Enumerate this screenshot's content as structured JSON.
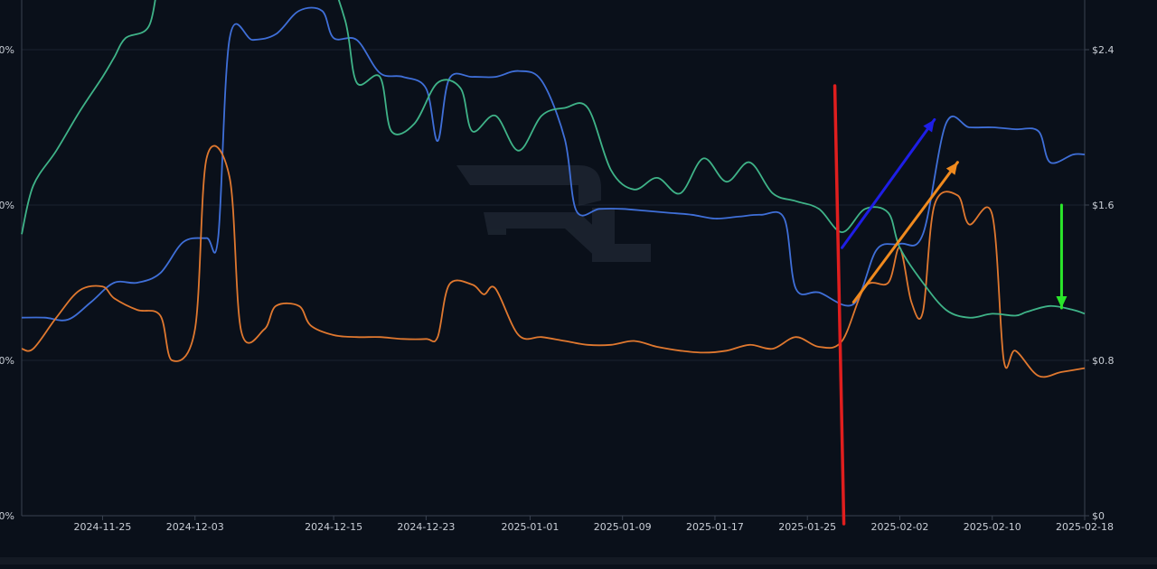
{
  "chart_data": {
    "type": "line",
    "title": "",
    "xlabel": "",
    "ylabel": "",
    "x_ticks": [
      "2024-11-25",
      "2024-12-03",
      "2024-12-15",
      "2024-12-23",
      "2025-01-01",
      "2025-01-09",
      "2025-01-17",
      "2025-01-25",
      "2025-02-02",
      "2025-02-10",
      "2025-02-18"
    ],
    "x_range": [
      "2024-11-18",
      "2025-02-18"
    ],
    "left_axis": {
      "ticks": [
        "0%",
        "0%",
        "0%",
        "0%"
      ],
      "note": "tick labels cut off at the left edge"
    },
    "right_axis": {
      "ticks": [
        "$0",
        "$0.8",
        "$1.6",
        "$2.4"
      ],
      "ylim": [
        0,
        2.4
      ]
    },
    "grid": "horizontal",
    "series": [
      {
        "color": "#3f6fd8",
        "points": [
          [
            "2024-11-18",
            1.02
          ],
          [
            "2024-11-20",
            1.02
          ],
          [
            "2024-11-22",
            1.01
          ],
          [
            "2024-11-24",
            1.1
          ],
          [
            "2024-11-26",
            1.2
          ],
          [
            "2024-11-28",
            1.2
          ],
          [
            "2024-11-30",
            1.25
          ],
          [
            "2024-12-02",
            1.41
          ],
          [
            "2024-12-04",
            1.43
          ],
          [
            "2024-12-05",
            1.43
          ],
          [
            "2024-12-06",
            2.46
          ],
          [
            "2024-12-08",
            2.45
          ],
          [
            "2024-12-10",
            2.48
          ],
          [
            "2024-12-12",
            2.6
          ],
          [
            "2024-12-14",
            2.6
          ],
          [
            "2024-12-15",
            2.46
          ],
          [
            "2024-12-17",
            2.45
          ],
          [
            "2024-12-19",
            2.28
          ],
          [
            "2024-12-21",
            2.26
          ],
          [
            "2024-12-23",
            2.2
          ],
          [
            "2024-12-24",
            1.93
          ],
          [
            "2024-12-25",
            2.25
          ],
          [
            "2024-12-27",
            2.26
          ],
          [
            "2024-12-29",
            2.26
          ],
          [
            "2024-12-31",
            2.29
          ],
          [
            "2025-01-02",
            2.24
          ],
          [
            "2025-01-04",
            1.94
          ],
          [
            "2025-01-05",
            1.57
          ],
          [
            "2025-01-07",
            1.58
          ],
          [
            "2025-01-09",
            1.58
          ],
          [
            "2025-01-11",
            1.57
          ],
          [
            "2025-01-13",
            1.56
          ],
          [
            "2025-01-15",
            1.55
          ],
          [
            "2025-01-17",
            1.53
          ],
          [
            "2025-01-19",
            1.54
          ],
          [
            "2025-01-21",
            1.55
          ],
          [
            "2025-01-23",
            1.53
          ],
          [
            "2025-01-24",
            1.17
          ],
          [
            "2025-01-26",
            1.15
          ],
          [
            "2025-01-29",
            1.09
          ],
          [
            "2025-01-31",
            1.37
          ],
          [
            "2025-02-02",
            1.4
          ],
          [
            "2025-02-04",
            1.45
          ],
          [
            "2025-02-06",
            2.02
          ],
          [
            "2025-02-08",
            2.0
          ],
          [
            "2025-02-10",
            2.0
          ],
          [
            "2025-02-12",
            1.99
          ],
          [
            "2025-02-14",
            1.98
          ],
          [
            "2025-02-15",
            1.82
          ],
          [
            "2025-02-17",
            1.86
          ],
          [
            "2025-02-18",
            1.86
          ]
        ]
      },
      {
        "color": "#e0782f",
        "points": [
          [
            "2024-11-18",
            0.86
          ],
          [
            "2024-11-19",
            0.86
          ],
          [
            "2024-11-21",
            1.02
          ],
          [
            "2024-11-23",
            1.16
          ],
          [
            "2024-11-25",
            1.18
          ],
          [
            "2024-11-26",
            1.12
          ],
          [
            "2024-11-28",
            1.06
          ],
          [
            "2024-11-30",
            1.03
          ],
          [
            "2024-12-01",
            0.8
          ],
          [
            "2024-12-03",
            0.96
          ],
          [
            "2024-12-04",
            1.84
          ],
          [
            "2024-12-06",
            1.74
          ],
          [
            "2024-12-07",
            0.95
          ],
          [
            "2024-12-09",
            0.96
          ],
          [
            "2024-12-10",
            1.08
          ],
          [
            "2024-12-12",
            1.08
          ],
          [
            "2024-12-13",
            0.98
          ],
          [
            "2024-12-15",
            0.93
          ],
          [
            "2024-12-17",
            0.92
          ],
          [
            "2024-12-19",
            0.92
          ],
          [
            "2024-12-21",
            0.91
          ],
          [
            "2024-12-23",
            0.91
          ],
          [
            "2024-12-24",
            0.92
          ],
          [
            "2024-12-25",
            1.19
          ],
          [
            "2024-12-27",
            1.19
          ],
          [
            "2024-12-28",
            1.14
          ],
          [
            "2024-12-29",
            1.17
          ],
          [
            "2024-12-31",
            0.93
          ],
          [
            "2025-01-02",
            0.92
          ],
          [
            "2025-01-04",
            0.9
          ],
          [
            "2025-01-06",
            0.88
          ],
          [
            "2025-01-08",
            0.88
          ],
          [
            "2025-01-10",
            0.9
          ],
          [
            "2025-01-12",
            0.87
          ],
          [
            "2025-01-14",
            0.85
          ],
          [
            "2025-01-16",
            0.84
          ],
          [
            "2025-01-18",
            0.85
          ],
          [
            "2025-01-20",
            0.88
          ],
          [
            "2025-01-22",
            0.86
          ],
          [
            "2025-01-24",
            0.92
          ],
          [
            "2025-01-26",
            0.87
          ],
          [
            "2025-01-28",
            0.9
          ],
          [
            "2025-01-30",
            1.18
          ],
          [
            "2025-02-01",
            1.2
          ],
          [
            "2025-02-02",
            1.38
          ],
          [
            "2025-02-03",
            1.1
          ],
          [
            "2025-02-04",
            1.05
          ],
          [
            "2025-02-05",
            1.6
          ],
          [
            "2025-02-07",
            1.65
          ],
          [
            "2025-02-08",
            1.5
          ],
          [
            "2025-02-10",
            1.55
          ],
          [
            "2025-02-11",
            0.8
          ],
          [
            "2025-02-12",
            0.85
          ],
          [
            "2025-02-14",
            0.72
          ],
          [
            "2025-02-16",
            0.74
          ],
          [
            "2025-02-18",
            0.76
          ]
        ]
      },
      {
        "color": "#3fb388",
        "points": [
          [
            "2024-11-18",
            1.45
          ],
          [
            "2024-11-19",
            1.7
          ],
          [
            "2024-11-21",
            1.88
          ],
          [
            "2024-11-23",
            2.08
          ],
          [
            "2024-11-25",
            2.26
          ],
          [
            "2024-11-26",
            2.36
          ],
          [
            "2024-11-27",
            2.46
          ],
          [
            "2024-11-29",
            2.52
          ],
          [
            "2024-11-30",
            2.78
          ],
          [
            "2024-12-01",
            2.72
          ],
          [
            "2024-12-02",
            2.88
          ],
          [
            "2024-12-07",
            2.96
          ],
          [
            "2024-12-10",
            2.99
          ],
          [
            "2024-12-12",
            2.94
          ],
          [
            "2024-12-14",
            2.86
          ],
          [
            "2024-12-16",
            2.55
          ],
          [
            "2024-12-17",
            2.23
          ],
          [
            "2024-12-19",
            2.26
          ],
          [
            "2024-12-20",
            1.98
          ],
          [
            "2024-12-22",
            2.02
          ],
          [
            "2024-12-24",
            2.23
          ],
          [
            "2024-12-26",
            2.2
          ],
          [
            "2024-12-27",
            1.98
          ],
          [
            "2024-12-29",
            2.06
          ],
          [
            "2024-12-31",
            1.88
          ],
          [
            "2025-01-02",
            2.06
          ],
          [
            "2025-01-04",
            2.1
          ],
          [
            "2025-01-06",
            2.1
          ],
          [
            "2025-01-08",
            1.78
          ],
          [
            "2025-01-10",
            1.68
          ],
          [
            "2025-01-12",
            1.74
          ],
          [
            "2025-01-14",
            1.66
          ],
          [
            "2025-01-16",
            1.84
          ],
          [
            "2025-01-18",
            1.72
          ],
          [
            "2025-01-20",
            1.82
          ],
          [
            "2025-01-22",
            1.66
          ],
          [
            "2025-01-24",
            1.62
          ],
          [
            "2025-01-26",
            1.58
          ],
          [
            "2025-01-28",
            1.46
          ],
          [
            "2025-01-30",
            1.58
          ],
          [
            "2025-02-01",
            1.56
          ],
          [
            "2025-02-02",
            1.38
          ],
          [
            "2025-02-04",
            1.2
          ],
          [
            "2025-02-06",
            1.06
          ],
          [
            "2025-02-08",
            1.02
          ],
          [
            "2025-02-10",
            1.04
          ],
          [
            "2025-02-12",
            1.03
          ],
          [
            "2025-02-13",
            1.05
          ],
          [
            "2025-02-15",
            1.08
          ],
          [
            "2025-02-17",
            1.06
          ],
          [
            "2025-02-18",
            1.04
          ]
        ]
      }
    ],
    "annotations": [
      {
        "type": "vertical-line",
        "color": "#e01e1e",
        "x": "2025-01-28"
      },
      {
        "type": "arrow-up",
        "color": "#1e1ee6",
        "from": [
          "2025-01-28",
          1.38
        ],
        "to": [
          "2025-02-05",
          2.04
        ]
      },
      {
        "type": "arrow-up",
        "color": "#f08a1e",
        "from": [
          "2025-01-29",
          1.1
        ],
        "to": [
          "2025-02-07",
          1.82
        ]
      },
      {
        "type": "arrow-down",
        "color": "#2ae62a",
        "from": [
          "2025-02-16",
          1.6
        ],
        "to": [
          "2025-02-16",
          1.07
        ]
      }
    ],
    "watermark": "RL"
  }
}
